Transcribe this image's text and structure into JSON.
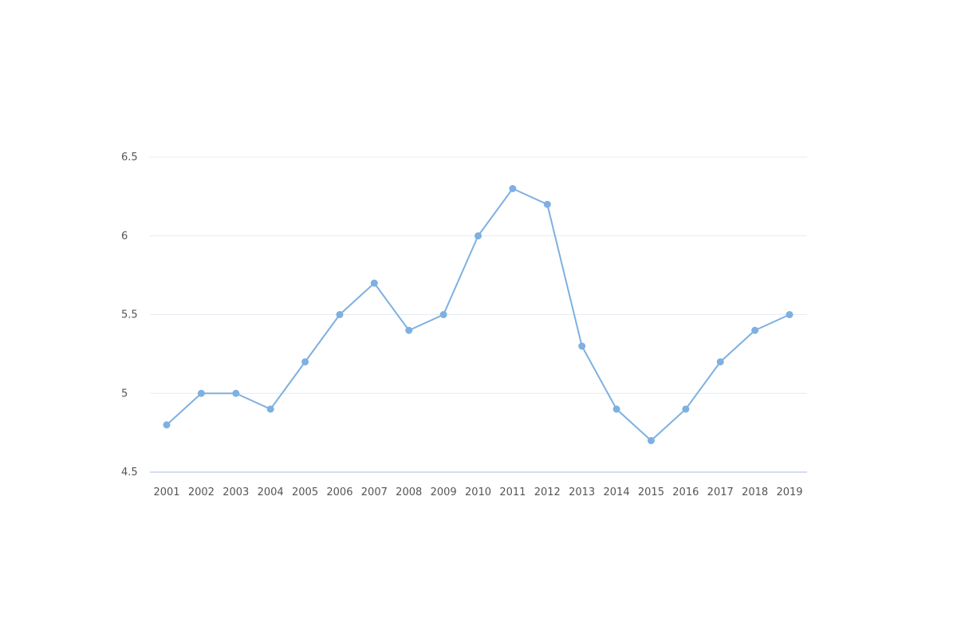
{
  "chart_data": {
    "type": "line",
    "title": "",
    "xlabel": "",
    "ylabel": "",
    "categories": [
      "2001",
      "2002",
      "2003",
      "2004",
      "2005",
      "2006",
      "2007",
      "2008",
      "2009",
      "2010",
      "2011",
      "2012",
      "2013",
      "2014",
      "2015",
      "2016",
      "2017",
      "2018",
      "2019"
    ],
    "series": [
      {
        "values": [
          4.8,
          5.0,
          5.0,
          4.9,
          5.2,
          5.5,
          5.7,
          5.4,
          5.5,
          6.0,
          6.3,
          6.2,
          5.3,
          4.9,
          4.7,
          4.9,
          5.2,
          5.4,
          5.5
        ]
      }
    ],
    "ylim": [
      4.5,
      6.5
    ],
    "yticks": [
      "4.5",
      "5",
      "5.5",
      "6",
      "6.5"
    ],
    "grid": true,
    "legend": "none",
    "colors": {
      "line": "#7eb0e0",
      "marker": "#7eb0e0",
      "grid": "#e6ebf2",
      "axis": "#c5d3e8",
      "tick_text": "#555555"
    }
  }
}
